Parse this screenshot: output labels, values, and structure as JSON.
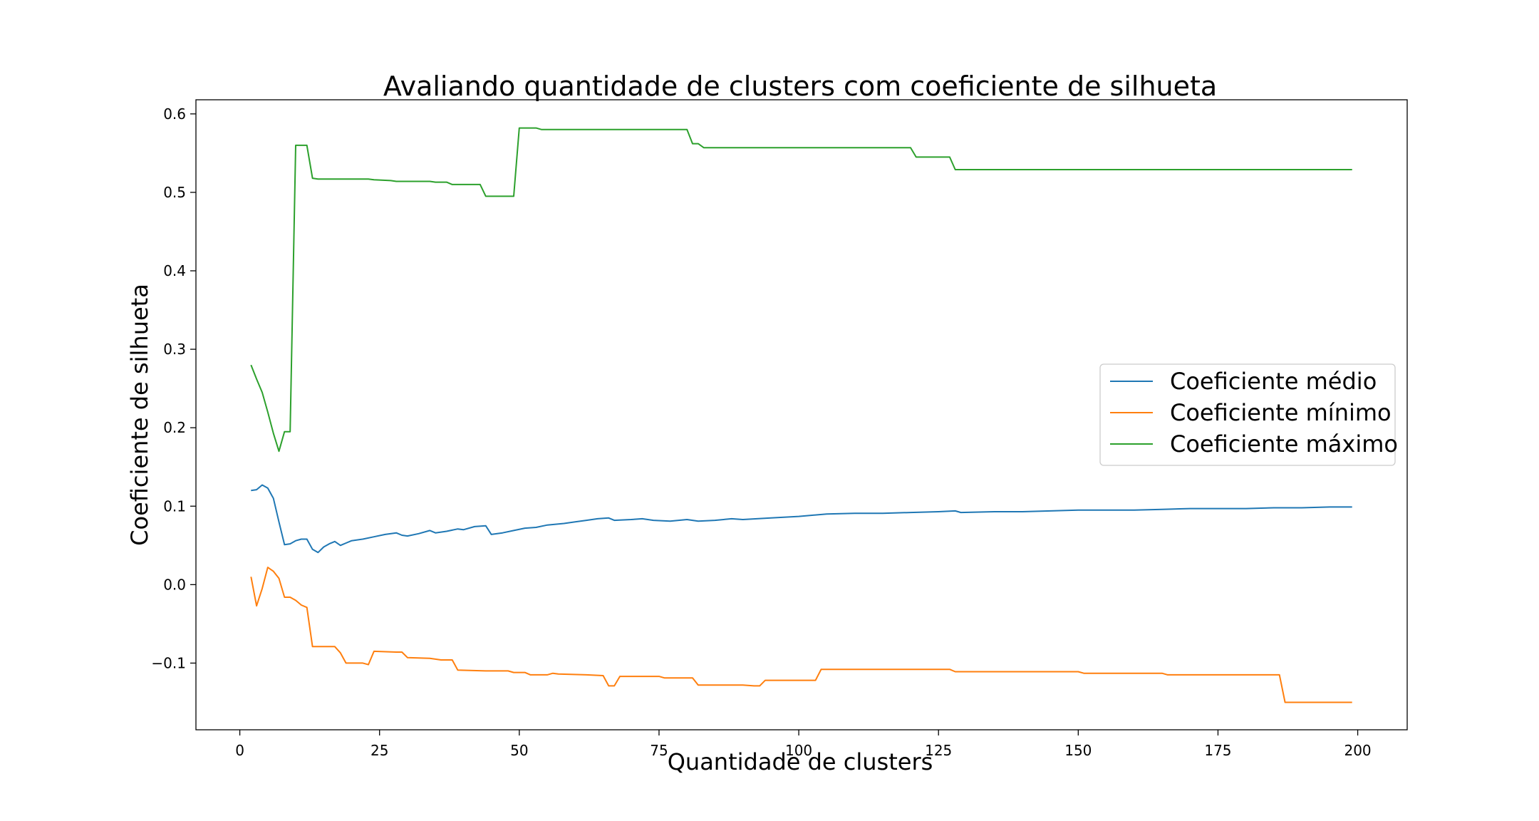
{
  "chart_data": {
    "type": "line",
    "title": "Avaliando quantidade de clusters com coeficiente de silhueta",
    "xlabel": "Quantidade de clusters",
    "ylabel": "Coeficiente de silhueta",
    "xlim": [
      -7.85,
      208.85
    ],
    "ylim": [
      -0.185,
      0.618
    ],
    "xticks": [
      0,
      25,
      50,
      75,
      100,
      125,
      150,
      175,
      200
    ],
    "xtick_labels": [
      "0",
      "25",
      "50",
      "75",
      "100",
      "125",
      "150",
      "175",
      "200"
    ],
    "yticks": [
      -0.1,
      0.0,
      0.1,
      0.2,
      0.3,
      0.4,
      0.5,
      0.6
    ],
    "ytick_labels": [
      "−0.1",
      "0.0",
      "0.1",
      "0.2",
      "0.3",
      "0.4",
      "0.5",
      "0.6"
    ],
    "grid": false,
    "legend_position": "center-right",
    "series": [
      {
        "name": "Coeficiente médio",
        "color": "#1f77b4",
        "points": [
          [
            2,
            0.12
          ],
          [
            3,
            0.121
          ],
          [
            4,
            0.127
          ],
          [
            5,
            0.123
          ],
          [
            6,
            0.11
          ],
          [
            7,
            0.08
          ],
          [
            8,
            0.051
          ],
          [
            9,
            0.052
          ],
          [
            10,
            0.056
          ],
          [
            11,
            0.058
          ],
          [
            12,
            0.058
          ],
          [
            13,
            0.045
          ],
          [
            14,
            0.041
          ],
          [
            15,
            0.048
          ],
          [
            16,
            0.052
          ],
          [
            17,
            0.055
          ],
          [
            18,
            0.05
          ],
          [
            19,
            0.053
          ],
          [
            20,
            0.056
          ],
          [
            22,
            0.058
          ],
          [
            24,
            0.061
          ],
          [
            26,
            0.064
          ],
          [
            28,
            0.066
          ],
          [
            29,
            0.063
          ],
          [
            30,
            0.062
          ],
          [
            32,
            0.065
          ],
          [
            34,
            0.069
          ],
          [
            35,
            0.066
          ],
          [
            37,
            0.068
          ],
          [
            39,
            0.071
          ],
          [
            40,
            0.07
          ],
          [
            42,
            0.074
          ],
          [
            44,
            0.075
          ],
          [
            45,
            0.064
          ],
          [
            47,
            0.066
          ],
          [
            49,
            0.069
          ],
          [
            51,
            0.072
          ],
          [
            53,
            0.073
          ],
          [
            55,
            0.076
          ],
          [
            58,
            0.078
          ],
          [
            60,
            0.08
          ],
          [
            62,
            0.082
          ],
          [
            64,
            0.084
          ],
          [
            66,
            0.085
          ],
          [
            67,
            0.082
          ],
          [
            70,
            0.083
          ],
          [
            72,
            0.084
          ],
          [
            74,
            0.082
          ],
          [
            77,
            0.081
          ],
          [
            80,
            0.083
          ],
          [
            82,
            0.081
          ],
          [
            85,
            0.082
          ],
          [
            88,
            0.084
          ],
          [
            90,
            0.083
          ],
          [
            95,
            0.085
          ],
          [
            100,
            0.087
          ],
          [
            105,
            0.09
          ],
          [
            110,
            0.091
          ],
          [
            115,
            0.091
          ],
          [
            120,
            0.092
          ],
          [
            125,
            0.093
          ],
          [
            128,
            0.094
          ],
          [
            129,
            0.092
          ],
          [
            135,
            0.093
          ],
          [
            140,
            0.093
          ],
          [
            145,
            0.094
          ],
          [
            150,
            0.095
          ],
          [
            155,
            0.095
          ],
          [
            160,
            0.095
          ],
          [
            165,
            0.096
          ],
          [
            170,
            0.097
          ],
          [
            175,
            0.097
          ],
          [
            180,
            0.097
          ],
          [
            185,
            0.098
          ],
          [
            190,
            0.098
          ],
          [
            195,
            0.099
          ],
          [
            199,
            0.099
          ]
        ]
      },
      {
        "name": "Coeficiente mínimo",
        "color": "#ff7f0e",
        "points": [
          [
            2,
            0.01
          ],
          [
            3,
            -0.027
          ],
          [
            4,
            -0.005
          ],
          [
            5,
            0.022
          ],
          [
            6,
            0.017
          ],
          [
            7,
            0.008
          ],
          [
            8,
            -0.016
          ],
          [
            9,
            -0.016
          ],
          [
            10,
            -0.02
          ],
          [
            11,
            -0.026
          ],
          [
            12,
            -0.029
          ],
          [
            13,
            -0.079
          ],
          [
            14,
            -0.079
          ],
          [
            17,
            -0.079
          ],
          [
            18,
            -0.087
          ],
          [
            19,
            -0.1
          ],
          [
            22,
            -0.1
          ],
          [
            23,
            -0.102
          ],
          [
            24,
            -0.085
          ],
          [
            28,
            -0.086
          ],
          [
            29,
            -0.086
          ],
          [
            30,
            -0.093
          ],
          [
            34,
            -0.094
          ],
          [
            36,
            -0.096
          ],
          [
            38,
            -0.096
          ],
          [
            39,
            -0.109
          ],
          [
            44,
            -0.11
          ],
          [
            48,
            -0.11
          ],
          [
            49,
            -0.112
          ],
          [
            51,
            -0.112
          ],
          [
            52,
            -0.115
          ],
          [
            55,
            -0.115
          ],
          [
            56,
            -0.113
          ],
          [
            57,
            -0.114
          ],
          [
            62,
            -0.115
          ],
          [
            65,
            -0.116
          ],
          [
            66,
            -0.129
          ],
          [
            67,
            -0.129
          ],
          [
            68,
            -0.117
          ],
          [
            75,
            -0.117
          ],
          [
            76,
            -0.119
          ],
          [
            81,
            -0.119
          ],
          [
            82,
            -0.128
          ],
          [
            90,
            -0.128
          ],
          [
            92,
            -0.129
          ],
          [
            93,
            -0.129
          ],
          [
            94,
            -0.122
          ],
          [
            103,
            -0.122
          ],
          [
            104,
            -0.108
          ],
          [
            127,
            -0.108
          ],
          [
            128,
            -0.111
          ],
          [
            150,
            -0.111
          ],
          [
            151,
            -0.113
          ],
          [
            165,
            -0.113
          ],
          [
            166,
            -0.115
          ],
          [
            186,
            -0.115
          ],
          [
            187,
            -0.15
          ],
          [
            199,
            -0.15
          ]
        ]
      },
      {
        "name": "Coeficiente máximo",
        "color": "#2ca02c",
        "points": [
          [
            2,
            0.28
          ],
          [
            3,
            0.262
          ],
          [
            4,
            0.245
          ],
          [
            5,
            0.22
          ],
          [
            6,
            0.193
          ],
          [
            7,
            0.17
          ],
          [
            8,
            0.195
          ],
          [
            9,
            0.195
          ],
          [
            10,
            0.56
          ],
          [
            11,
            0.56
          ],
          [
            12,
            0.56
          ],
          [
            13,
            0.518
          ],
          [
            14,
            0.517
          ],
          [
            22,
            0.517
          ],
          [
            23,
            0.517
          ],
          [
            24,
            0.516
          ],
          [
            27,
            0.515
          ],
          [
            28,
            0.514
          ],
          [
            34,
            0.514
          ],
          [
            35,
            0.513
          ],
          [
            37,
            0.513
          ],
          [
            38,
            0.51
          ],
          [
            43,
            0.51
          ],
          [
            44,
            0.495
          ],
          [
            49,
            0.495
          ],
          [
            50,
            0.582
          ],
          [
            53,
            0.582
          ],
          [
            54,
            0.58
          ],
          [
            80,
            0.58
          ],
          [
            81,
            0.562
          ],
          [
            82,
            0.562
          ],
          [
            83,
            0.557
          ],
          [
            120,
            0.557
          ],
          [
            121,
            0.545
          ],
          [
            127,
            0.545
          ],
          [
            128,
            0.529
          ],
          [
            199,
            0.529
          ]
        ]
      }
    ]
  }
}
